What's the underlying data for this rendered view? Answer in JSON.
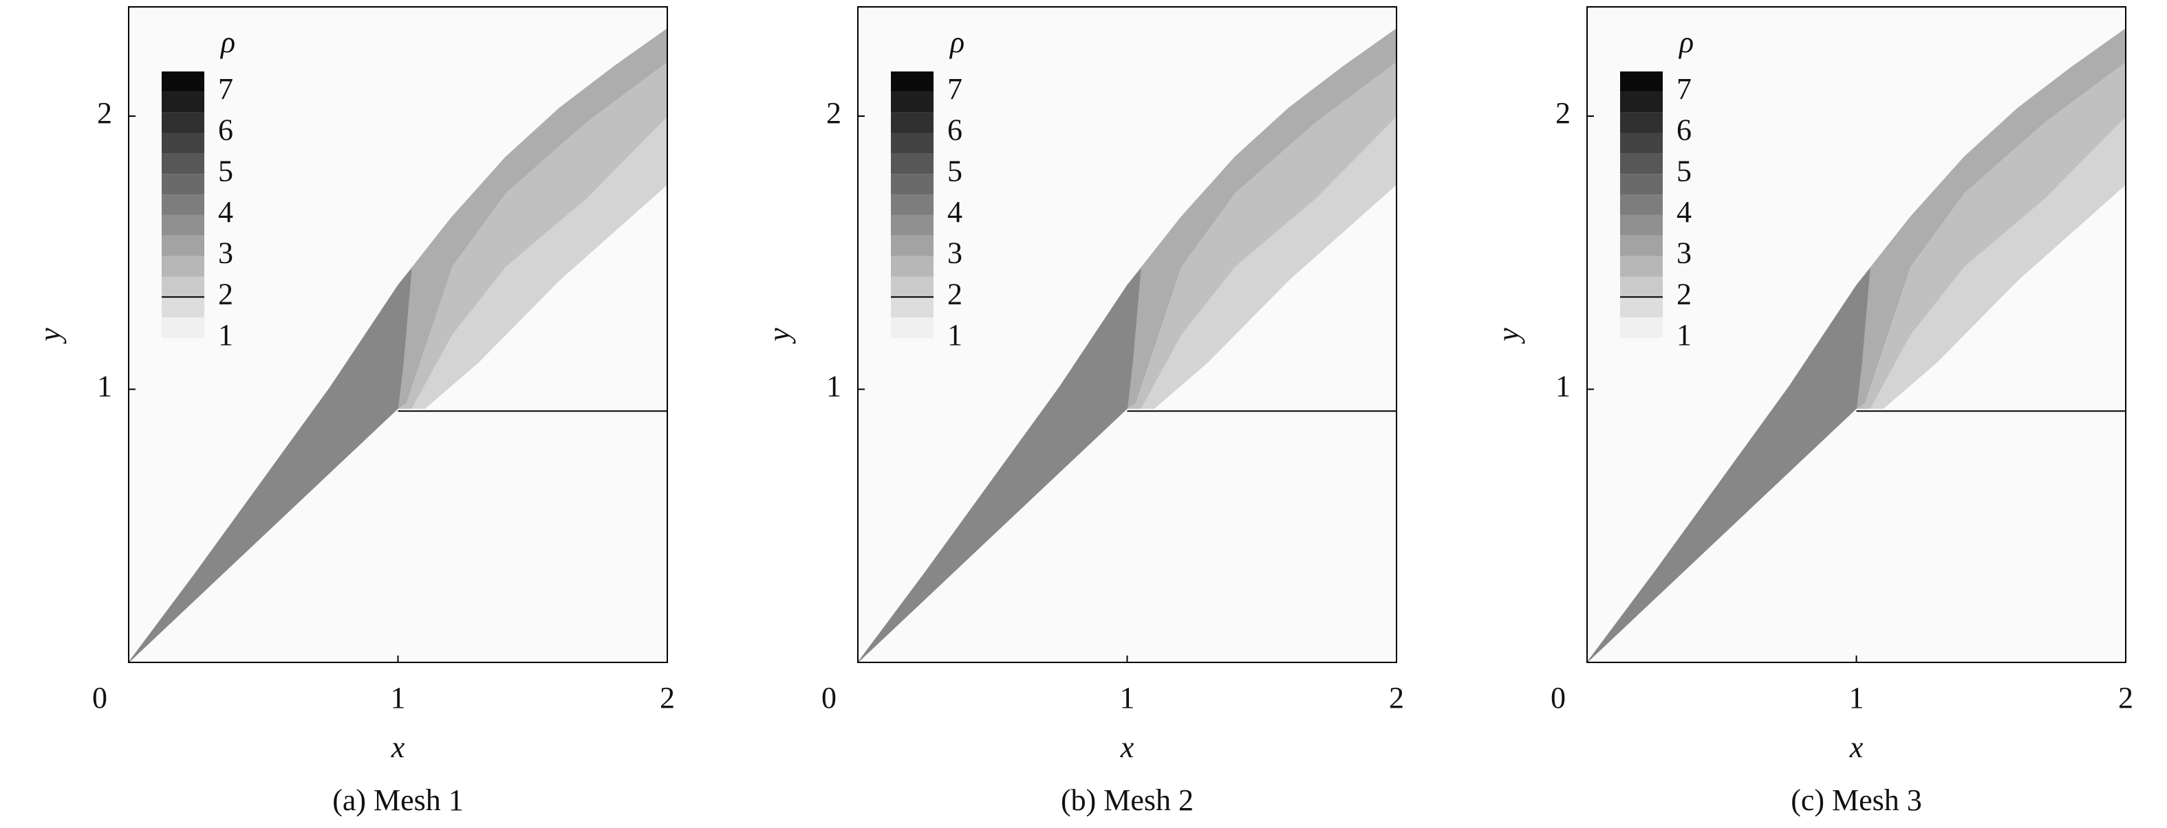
{
  "chart_data": [
    {
      "type": "contour",
      "caption": "(a) Mesh 1",
      "xlabel": "x",
      "ylabel": "y",
      "xlim": [
        0,
        2
      ],
      "ylim": [
        0,
        2.4
      ],
      "xticks": [
        0,
        1,
        2
      ],
      "yticks": [
        1,
        2
      ],
      "colorbar": {
        "title": "ρ",
        "clim": [
          1,
          7.5
        ],
        "ticks": [
          1,
          2,
          3,
          4,
          5,
          6,
          7
        ],
        "levels": [
          1,
          1.5,
          2,
          2.5,
          3,
          3.5,
          4,
          4.5,
          5,
          5.5,
          6,
          6.5,
          7,
          7.5
        ],
        "line_level": 2,
        "cmap": [
          "#fafafa",
          "#000000"
        ]
      },
      "regions": [
        {
          "level": 2,
          "points": [
            [
              1,
              0.93
            ],
            [
              1,
              1.38
            ],
            [
              1.2,
              1.63
            ],
            [
              1.4,
              1.85
            ],
            [
              1.6,
              2.03
            ],
            [
              1.8,
              2.18
            ],
            [
              2,
              2.32
            ],
            [
              2,
              1.75
            ],
            [
              1.6,
              1.4
            ],
            [
              1.3,
              1.1
            ],
            [
              1.1,
              0.93
            ]
          ]
        },
        {
          "level": 2.5,
          "points": [
            [
              1,
              0.93
            ],
            [
              1,
              1.38
            ],
            [
              1.2,
              1.63
            ],
            [
              1.4,
              1.85
            ],
            [
              1.6,
              2.03
            ],
            [
              1.8,
              2.18
            ],
            [
              2,
              2.32
            ],
            [
              2,
              2.0
            ],
            [
              1.7,
              1.7
            ],
            [
              1.4,
              1.45
            ],
            [
              1.2,
              1.2
            ],
            [
              1.05,
              0.93
            ]
          ]
        },
        {
          "level": 3,
          "points": [
            [
              1,
              0.93
            ],
            [
              1,
              1.38
            ],
            [
              1.2,
              1.63
            ],
            [
              1.4,
              1.85
            ],
            [
              1.6,
              2.03
            ],
            [
              1.8,
              2.18
            ],
            [
              2,
              2.32
            ],
            [
              2,
              2.2
            ],
            [
              1.7,
              1.98
            ],
            [
              1.4,
              1.72
            ],
            [
              1.2,
              1.45
            ],
            [
              1.03,
              0.95
            ]
          ]
        },
        {
          "level": 4,
          "points": [
            [
              0,
              0
            ],
            [
              0.25,
              0.33
            ],
            [
              0.5,
              0.67
            ],
            [
              0.75,
              1.01
            ],
            [
              1,
              1.38
            ],
            [
              1.05,
              1.44
            ],
            [
              1.02,
              1.1
            ],
            [
              1,
              0.93
            ]
          ]
        }
      ],
      "contact_line": {
        "x": [
          1,
          2
        ],
        "y": [
          0.92,
          0.92
        ]
      }
    },
    {
      "type": "contour",
      "caption": "(b) Mesh 2",
      "xlabel": "x",
      "ylabel": "y",
      "xlim": [
        0,
        2
      ],
      "ylim": [
        0,
        2.4
      ],
      "xticks": [
        0,
        1,
        2
      ],
      "yticks": [
        1,
        2
      ],
      "colorbar": {
        "title": "ρ",
        "clim": [
          1,
          7.5
        ],
        "ticks": [
          1,
          2,
          3,
          4,
          5,
          6,
          7
        ],
        "levels": [
          1,
          1.5,
          2,
          2.5,
          3,
          3.5,
          4,
          4.5,
          5,
          5.5,
          6,
          6.5,
          7,
          7.5
        ],
        "line_level": 2,
        "cmap": [
          "#fafafa",
          "#000000"
        ]
      },
      "regions": [
        {
          "level": 2,
          "points": [
            [
              1,
              0.93
            ],
            [
              1,
              1.38
            ],
            [
              1.2,
              1.63
            ],
            [
              1.4,
              1.85
            ],
            [
              1.6,
              2.03
            ],
            [
              1.8,
              2.18
            ],
            [
              2,
              2.32
            ],
            [
              2,
              1.75
            ],
            [
              1.6,
              1.4
            ],
            [
              1.3,
              1.1
            ],
            [
              1.1,
              0.93
            ]
          ]
        },
        {
          "level": 2.5,
          "points": [
            [
              1,
              0.93
            ],
            [
              1,
              1.38
            ],
            [
              1.2,
              1.63
            ],
            [
              1.4,
              1.85
            ],
            [
              1.6,
              2.03
            ],
            [
              1.8,
              2.18
            ],
            [
              2,
              2.32
            ],
            [
              2,
              2.0
            ],
            [
              1.7,
              1.7
            ],
            [
              1.4,
              1.45
            ],
            [
              1.2,
              1.2
            ],
            [
              1.05,
              0.93
            ]
          ]
        },
        {
          "level": 3,
          "points": [
            [
              1,
              0.93
            ],
            [
              1,
              1.38
            ],
            [
              1.2,
              1.63
            ],
            [
              1.4,
              1.85
            ],
            [
              1.6,
              2.03
            ],
            [
              1.8,
              2.18
            ],
            [
              2,
              2.32
            ],
            [
              2,
              2.2
            ],
            [
              1.7,
              1.98
            ],
            [
              1.4,
              1.72
            ],
            [
              1.2,
              1.45
            ],
            [
              1.03,
              0.95
            ]
          ]
        },
        {
          "level": 4,
          "points": [
            [
              0,
              0
            ],
            [
              0.25,
              0.33
            ],
            [
              0.5,
              0.67
            ],
            [
              0.75,
              1.01
            ],
            [
              1,
              1.38
            ],
            [
              1.05,
              1.44
            ],
            [
              1.02,
              1.1
            ],
            [
              1,
              0.93
            ]
          ]
        }
      ],
      "contact_line": {
        "x": [
          1,
          2
        ],
        "y": [
          0.92,
          0.92
        ]
      }
    },
    {
      "type": "contour",
      "caption": "(c) Mesh 3",
      "xlabel": "x",
      "ylabel": "y",
      "xlim": [
        0,
        2
      ],
      "ylim": [
        0,
        2.4
      ],
      "xticks": [
        0,
        1,
        2
      ],
      "yticks": [
        1,
        2
      ],
      "colorbar": {
        "title": "ρ",
        "clim": [
          1,
          7.5
        ],
        "ticks": [
          1,
          2,
          3,
          4,
          5,
          6,
          7
        ],
        "levels": [
          1,
          1.5,
          2,
          2.5,
          3,
          3.5,
          4,
          4.5,
          5,
          5.5,
          6,
          6.5,
          7,
          7.5
        ],
        "line_level": 2,
        "cmap": [
          "#fafafa",
          "#000000"
        ]
      },
      "regions": [
        {
          "level": 2,
          "points": [
            [
              1,
              0.93
            ],
            [
              1,
              1.38
            ],
            [
              1.2,
              1.63
            ],
            [
              1.4,
              1.85
            ],
            [
              1.6,
              2.03
            ],
            [
              1.8,
              2.18
            ],
            [
              2,
              2.32
            ],
            [
              2,
              1.75
            ],
            [
              1.6,
              1.4
            ],
            [
              1.3,
              1.1
            ],
            [
              1.1,
              0.93
            ]
          ]
        },
        {
          "level": 2.5,
          "points": [
            [
              1,
              0.93
            ],
            [
              1,
              1.38
            ],
            [
              1.2,
              1.63
            ],
            [
              1.4,
              1.85
            ],
            [
              1.6,
              2.03
            ],
            [
              1.8,
              2.18
            ],
            [
              2,
              2.32
            ],
            [
              2,
              2.0
            ],
            [
              1.7,
              1.7
            ],
            [
              1.4,
              1.45
            ],
            [
              1.2,
              1.2
            ],
            [
              1.05,
              0.93
            ]
          ]
        },
        {
          "level": 3,
          "points": [
            [
              1,
              0.93
            ],
            [
              1,
              1.38
            ],
            [
              1.2,
              1.63
            ],
            [
              1.4,
              1.85
            ],
            [
              1.6,
              2.03
            ],
            [
              1.8,
              2.18
            ],
            [
              2,
              2.32
            ],
            [
              2,
              2.2
            ],
            [
              1.7,
              1.98
            ],
            [
              1.4,
              1.72
            ],
            [
              1.2,
              1.45
            ],
            [
              1.03,
              0.95
            ]
          ]
        },
        {
          "level": 4,
          "points": [
            [
              0,
              0
            ],
            [
              0.25,
              0.33
            ],
            [
              0.5,
              0.67
            ],
            [
              0.75,
              1.01
            ],
            [
              1,
              1.38
            ],
            [
              1.05,
              1.44
            ],
            [
              1.02,
              1.1
            ],
            [
              1,
              0.93
            ]
          ]
        }
      ],
      "contact_line": {
        "x": [
          1,
          2
        ],
        "y": [
          0.92,
          0.92
        ]
      }
    }
  ]
}
